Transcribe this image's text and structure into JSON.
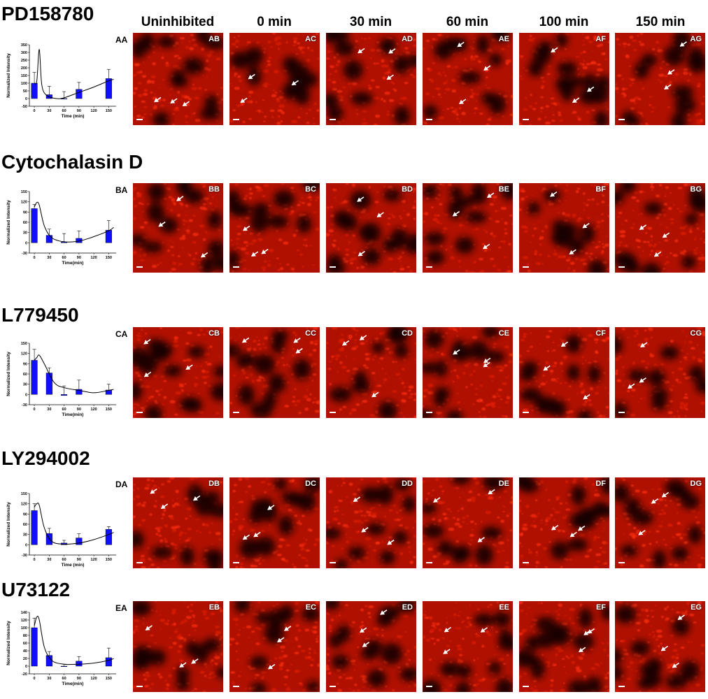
{
  "column_headers": [
    "Uninhibited",
    "0 min",
    "30 min",
    "60 min",
    "100 min",
    "150 min"
  ],
  "colors": {
    "bar": "#1010ff",
    "curve": "#000000",
    "micro_base": "#b01000",
    "micro_dark": "#180000",
    "arrow": "#ffffff"
  },
  "rows": [
    {
      "title": "PD158780",
      "chart_label": "AA",
      "panels": [
        "AB",
        "AC",
        "AD",
        "AE",
        "AF",
        "AG"
      ]
    },
    {
      "title": "Cytochalasin D",
      "chart_label": "BA",
      "panels": [
        "BB",
        "BC",
        "BD",
        "BE",
        "BF",
        "BG"
      ]
    },
    {
      "title": "L779450",
      "chart_label": "CA",
      "panels": [
        "CB",
        "CC",
        "CD",
        "CE",
        "CF",
        "CG"
      ]
    },
    {
      "title": "LY294002",
      "chart_label": "DA",
      "panels": [
        "DB",
        "DC",
        "DD",
        "DE",
        "DF",
        "DG"
      ]
    },
    {
      "title": "U73122",
      "chart_label": "EA",
      "panels": [
        "EB",
        "EC",
        "ED",
        "EE",
        "EF",
        "EG"
      ]
    }
  ],
  "chart_data": [
    {
      "type": "bar",
      "ylabel": "Normalized Intensity",
      "xlabel": "Time (min)",
      "x": [
        0,
        30,
        60,
        90,
        150
      ],
      "values": [
        100,
        25,
        0,
        60,
        130
      ],
      "errors": [
        70,
        55,
        45,
        45,
        60
      ],
      "xticks": [
        "0",
        "30",
        "60",
        "90",
        "120",
        "150"
      ],
      "xlim": [
        -10,
        165
      ],
      "yticks": [
        "-50",
        "0",
        "50",
        "100",
        "150",
        "200",
        "250",
        "300",
        "350"
      ],
      "ylim": [
        -50,
        350
      ],
      "curve": [
        [
          0,
          100
        ],
        [
          5,
          115
        ],
        [
          10,
          320
        ],
        [
          15,
          90
        ],
        [
          25,
          20
        ],
        [
          45,
          0
        ],
        [
          60,
          5
        ],
        [
          90,
          40
        ],
        [
          120,
          75
        ],
        [
          150,
          115
        ],
        [
          160,
          125
        ]
      ]
    },
    {
      "type": "bar",
      "ylabel": "Normalized Intensity",
      "xlabel": "Time(min)",
      "x": [
        0,
        30,
        60,
        90,
        150
      ],
      "values": [
        100,
        22,
        2,
        13,
        37
      ],
      "errors": [
        12,
        18,
        25,
        22,
        28
      ],
      "xticks": [
        "0",
        "30",
        "60",
        "90",
        "120",
        "150"
      ],
      "xlim": [
        -10,
        165
      ],
      "yticks": [
        "-30",
        "0",
        "30",
        "60",
        "90",
        "120",
        "150"
      ],
      "ylim": [
        -30,
        150
      ],
      "curve": [
        [
          0,
          105
        ],
        [
          5,
          118
        ],
        [
          10,
          110
        ],
        [
          20,
          50
        ],
        [
          35,
          15
        ],
        [
          60,
          3
        ],
        [
          90,
          5
        ],
        [
          120,
          18
        ],
        [
          150,
          35
        ],
        [
          160,
          45
        ]
      ]
    },
    {
      "type": "bar",
      "ylabel": "Normalized Intensity",
      "xlabel": "Time(min)",
      "x": [
        0,
        30,
        60,
        90,
        150
      ],
      "values": [
        100,
        63,
        -3,
        15,
        13
      ],
      "errors": [
        32,
        15,
        28,
        27,
        17
      ],
      "xticks": [
        "0",
        "30",
        "60",
        "90",
        "120",
        "150"
      ],
      "xlim": [
        -10,
        165
      ],
      "yticks": [
        "-30",
        "0",
        "30",
        "60",
        "90",
        "120",
        "150"
      ],
      "ylim": [
        -30,
        150
      ],
      "curve": [
        [
          0,
          100
        ],
        [
          5,
          108
        ],
        [
          10,
          115
        ],
        [
          20,
          90
        ],
        [
          40,
          35
        ],
        [
          60,
          20
        ],
        [
          90,
          12
        ],
        [
          120,
          5
        ],
        [
          150,
          12
        ],
        [
          160,
          15
        ]
      ]
    },
    {
      "type": "bar",
      "ylabel": "Normalized Intensity",
      "xlabel": "Time (min)",
      "x": [
        0,
        30,
        60,
        90,
        150
      ],
      "values": [
        100,
        33,
        5,
        20,
        45
      ],
      "errors": [
        20,
        15,
        8,
        12,
        8
      ],
      "xticks": [
        "0",
        "30",
        "60",
        "90",
        "120",
        "150"
      ],
      "xlim": [
        -10,
        165
      ],
      "yticks": [
        "-30",
        "0",
        "30",
        "60",
        "90",
        "120",
        "150"
      ],
      "ylim": [
        -30,
        150
      ],
      "curve": [
        [
          0,
          110
        ],
        [
          5,
          120
        ],
        [
          10,
          115
        ],
        [
          20,
          50
        ],
        [
          35,
          10
        ],
        [
          60,
          2
        ],
        [
          90,
          5
        ],
        [
          120,
          15
        ],
        [
          150,
          30
        ],
        [
          160,
          36
        ]
      ]
    },
    {
      "type": "bar",
      "ylabel": "Normalized Intensity",
      "xlabel": "Time(min)",
      "x": [
        0,
        30,
        60,
        90,
        150
      ],
      "values": [
        100,
        28,
        0,
        13,
        22
      ],
      "errors": [
        25,
        10,
        5,
        12,
        25
      ],
      "xticks": [
        "0",
        "30",
        "60",
        "90",
        "120",
        "150"
      ],
      "xlim": [
        -10,
        165
      ],
      "yticks": [
        "-20",
        "0",
        "20",
        "40",
        "60",
        "80",
        "100",
        "120",
        "140"
      ],
      "ylim": [
        -20,
        140
      ],
      "curve": [
        [
          0,
          105
        ],
        [
          5,
          128
        ],
        [
          10,
          120
        ],
        [
          20,
          50
        ],
        [
          35,
          15
        ],
        [
          60,
          5
        ],
        [
          90,
          5
        ],
        [
          120,
          8
        ],
        [
          150,
          15
        ],
        [
          160,
          20
        ]
      ]
    }
  ]
}
